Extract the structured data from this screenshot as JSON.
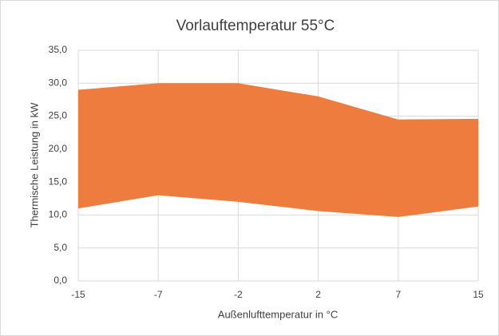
{
  "chart_data": {
    "type": "range_area",
    "title": "Vorlauftemperatur 55°C",
    "x_label": "Außenlufttemperatur in °C",
    "y_label": "Thermische Leistung in kW",
    "categories": [
      "-15",
      "-7",
      "-2",
      "2",
      "7",
      "15"
    ],
    "series": [
      {
        "values": [
          11,
          13,
          12,
          10.6,
          9.7,
          11.3
        ]
      },
      {
        "values": [
          29,
          30,
          30,
          28,
          24.5,
          24.6
        ]
      }
    ],
    "color": "#ee7c3f",
    "ylim": [
      0,
      35
    ],
    "yticks": [
      {
        "value": 0,
        "label": "0,0"
      },
      {
        "value": 5,
        "label": "5,0"
      },
      {
        "value": 10,
        "label": "10,0"
      },
      {
        "value": 15,
        "label": "15,0"
      },
      {
        "value": 20,
        "label": "20,0"
      },
      {
        "value": 25,
        "label": "25,0"
      },
      {
        "value": 30,
        "label": "30,0"
      },
      {
        "value": 35,
        "label": "35,0"
      }
    ],
    "grid": true
  }
}
